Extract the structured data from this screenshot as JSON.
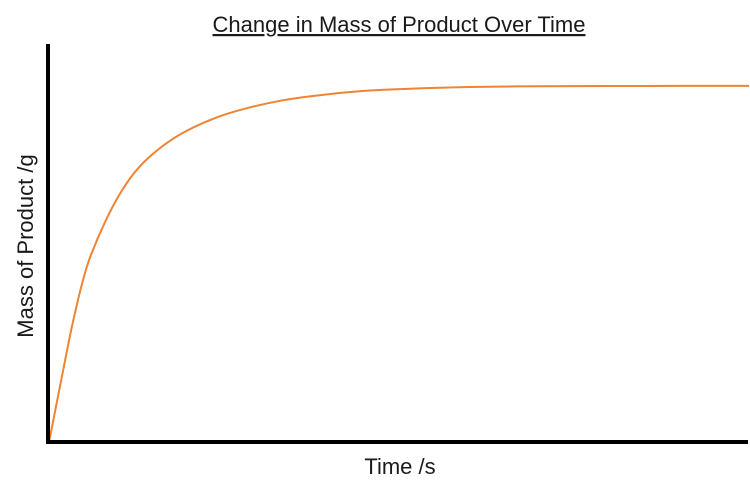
{
  "colors": {
    "series": "#EE8434",
    "axis": "#000000",
    "text": "#1a1a1a"
  },
  "chart_data": {
    "type": "line",
    "title": "Change in Mass of Product Over Time",
    "xlabel": "Time /s",
    "ylabel": "Mass of Product /g",
    "xlim": [
      0,
      100
    ],
    "ylim": [
      0,
      100
    ],
    "grid": false,
    "legend": "none",
    "ticks": false,
    "series": [
      {
        "x": [
          0,
          1,
          2,
          3,
          4,
          5,
          6,
          8,
          10,
          12,
          14,
          17,
          20,
          24,
          28,
          33,
          38,
          45,
          52,
          60,
          70,
          80,
          90,
          100
        ],
        "values": [
          0,
          9,
          18,
          27,
          35,
          42,
          47.5,
          55.8,
          62.6,
          67.9,
          71.8,
          76.1,
          79.3,
          82.4,
          84.6,
          86.6,
          87.9,
          89.1,
          89.7,
          90.1,
          90.3,
          90.35,
          90.37,
          90.37
        ]
      }
    ]
  }
}
